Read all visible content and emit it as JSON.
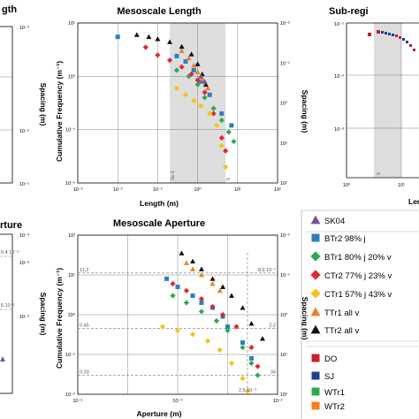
{
  "chart_data": [
    {
      "type": "scatter",
      "title": "Mesoscale Length",
      "xlabel": "Length (m)",
      "ylabel": "Cumulative Frequency (m⁻¹)",
      "y2label": "Spacing (m)",
      "xscale": "log",
      "yscale": "log",
      "xlim": [
        0.001,
        100
      ],
      "ylim": [
        0.01,
        10
      ],
      "xticks": [
        "10⁻³",
        "10⁻²",
        "10⁻¹",
        "10⁰",
        "10¹",
        "10²"
      ],
      "yticks": [
        "10¹",
        "10⁰",
        "10⁻¹",
        "10⁻²"
      ],
      "y2ticks": [
        "10⁻²",
        "10⁻¹",
        "10⁰",
        "10¹",
        "10²"
      ],
      "shaded_range": [
        0.2,
        5
      ],
      "annotations": [
        {
          "text": "2e-1",
          "x": 0.2
        },
        {
          "text": "5",
          "x": 5
        }
      ],
      "series": [
        {
          "name": "BTr2 98% j",
          "values": [
            [
              0.01,
              5.5
            ],
            [
              0.3,
              2.4
            ],
            [
              0.5,
              1.9
            ],
            [
              0.8,
              1.3
            ],
            [
              1.2,
              0.8
            ],
            [
              2,
              0.45
            ],
            [
              4,
              0.2
            ],
            [
              7,
              0.12
            ]
          ]
        },
        {
          "name": "BTr1 80% j 20% v",
          "values": [
            [
              0.3,
              1.3
            ],
            [
              0.6,
              1.0
            ],
            [
              1,
              0.7
            ],
            [
              1.5,
              0.4
            ],
            [
              2.5,
              0.25
            ],
            [
              4,
              0.15
            ],
            [
              6,
              0.09
            ],
            [
              8,
              0.06
            ]
          ]
        },
        {
          "name": "CTr2 77% j 23% v",
          "values": [
            [
              0.05,
              3.5
            ],
            [
              0.1,
              2.5
            ],
            [
              0.2,
              2.0
            ],
            [
              0.4,
              1.5
            ],
            [
              0.7,
              1.1
            ],
            [
              1,
              0.85
            ],
            [
              1.5,
              0.5
            ],
            [
              2.5,
              0.2
            ],
            [
              4,
              0.07
            ],
            [
              5,
              0.04
            ]
          ]
        },
        {
          "name": "CTr1 57% j 43% v",
          "values": [
            [
              0.3,
              0.6
            ],
            [
              0.5,
              0.45
            ],
            [
              0.8,
              0.35
            ],
            [
              1.2,
              0.28
            ],
            [
              2,
              0.2
            ],
            [
              3,
              0.12
            ],
            [
              4,
              0.05
            ],
            [
              5,
              0.02
            ]
          ]
        },
        {
          "name": "TTr1 all v",
          "values": [
            [
              0.4,
              3.0
            ],
            [
              0.6,
              2.2
            ],
            [
              0.8,
              1.6
            ],
            [
              1,
              1.2
            ],
            [
              1.3,
              0.9
            ],
            [
              1.8,
              0.6
            ]
          ]
        },
        {
          "name": "TTr2 all v",
          "values": [
            [
              0.03,
              6.0
            ],
            [
              0.06,
              5.5
            ],
            [
              0.1,
              5.0
            ],
            [
              0.2,
              4.4
            ],
            [
              0.4,
              3.6
            ],
            [
              0.7,
              2.6
            ],
            [
              1,
              1.7
            ],
            [
              1.3,
              1.1
            ],
            [
              1.6,
              0.7
            ]
          ]
        },
        {
          "name": "SK04",
          "values": [
            [
              1.2,
              1.0
            ],
            [
              1.5,
              0.8
            ]
          ]
        }
      ]
    },
    {
      "type": "scatter",
      "title": "Mesoscale Aperture",
      "xlabel": "Aperture (m)",
      "ylabel": "Cumulative Frequency (m⁻¹)",
      "y2label": "Spacing (m)",
      "xscale": "log",
      "yscale": "log",
      "xlim": [
        1e-06,
        0.01
      ],
      "ylim": [
        0.01,
        100
      ],
      "xticks": [
        "10⁻⁶",
        "10⁻⁴",
        "10⁻²"
      ],
      "yticks": [
        "10²",
        "10¹",
        "10⁰",
        "10⁻¹",
        "10⁻²"
      ],
      "y2ticks": [
        "10⁻²",
        "10⁻¹",
        "10⁰",
        "10¹",
        "10²"
      ],
      "annotations": [
        {
          "text": "11.2",
          "side": "left",
          "y": 11.2
        },
        {
          "text": "0.45",
          "side": "left",
          "y": 0.45
        },
        {
          "text": "0.03",
          "side": "left",
          "y": 0.03
        },
        {
          "text": "8.9 10⁻²",
          "side": "right",
          "y": 11.2
        },
        {
          "text": "2.2",
          "side": "right",
          "y": 0.45
        },
        {
          "text": "34",
          "side": "right",
          "y": 0.03
        },
        {
          "text": "2.5 10⁻³",
          "side": "bottom",
          "x": 0.0025
        }
      ],
      "series": [
        {
          "name": "BTr2 98% j",
          "values": [
            [
              6e-05,
              8
            ],
            [
              0.0001,
              5
            ],
            [
              0.0002,
              3
            ],
            [
              0.0003,
              2
            ],
            [
              0.0005,
              1.5
            ],
            [
              0.0008,
              0.9
            ],
            [
              0.001,
              0.5
            ],
            [
              0.002,
              0.2
            ],
            [
              0.003,
              0.08
            ]
          ]
        },
        {
          "name": "BTr1 80% j 20% v",
          "values": [
            [
              8e-05,
              3
            ],
            [
              0.00015,
              2
            ],
            [
              0.0003,
              1.2
            ],
            [
              0.0006,
              0.7
            ],
            [
              0.001,
              0.4
            ],
            [
              0.002,
              0.15
            ],
            [
              0.003,
              0.06
            ],
            [
              0.004,
              0.03
            ]
          ]
        },
        {
          "name": "CTr2 77% j 23% v",
          "values": [
            [
              8e-05,
              6
            ],
            [
              0.00015,
              4
            ],
            [
              0.0003,
              2.5
            ],
            [
              0.0005,
              1.6
            ],
            [
              0.0008,
              1.0
            ],
            [
              0.0015,
              0.5
            ],
            [
              0.003,
              0.15
            ],
            [
              0.004,
              0.05
            ]
          ]
        },
        {
          "name": "CTr1 57% j 43% v",
          "values": [
            [
              5e-05,
              0.5
            ],
            [
              0.0001,
              0.4
            ],
            [
              0.0002,
              0.32
            ],
            [
              0.0004,
              0.22
            ],
            [
              0.0007,
              0.13
            ],
            [
              0.0012,
              0.06
            ],
            [
              0.002,
              0.025
            ],
            [
              0.0025,
              0.012
            ]
          ]
        },
        {
          "name": "TTr1 all v",
          "values": [
            [
              0.00015,
              20
            ],
            [
              0.0002,
              14
            ],
            [
              0.0003,
              10
            ],
            [
              0.0005,
              6
            ],
            [
              0.0007,
              4
            ]
          ]
        },
        {
          "name": "TTr2 all v",
          "values": [
            [
              0.00012,
              35
            ],
            [
              0.0002,
              22
            ],
            [
              0.0003,
              14
            ],
            [
              0.0005,
              8
            ],
            [
              0.0008,
              5
            ],
            [
              0.0012,
              3
            ],
            [
              0.002,
              1.5
            ],
            [
              0.003,
              0.6
            ],
            [
              0.005,
              0.25
            ]
          ]
        }
      ]
    }
  ],
  "left_top": {
    "ylabel": "Spacing (m)",
    "yticks": [
      "10⁻⁴",
      "10⁻²",
      "10⁻¹"
    ],
    "title_fragment": "gth"
  },
  "left_bottom": {
    "ylabel": "Spacing (m)",
    "yticks": [
      "10⁻⁴",
      "10⁻³",
      "10⁻²"
    ],
    "title_fragment": "rture",
    "labels": [
      "6.4 10⁻³",
      "6.10⁻³"
    ]
  },
  "right_top": {
    "title": "Sub-regi",
    "ylabel": "",
    "xlabel": "Len",
    "yticks": [
      "10⁻¹",
      "10⁻²",
      "10⁻³"
    ],
    "xticks": [
      "10⁰",
      "10¹"
    ],
    "annotation": "5"
  },
  "legend": {
    "items": [
      {
        "label": "SK04",
        "marker": "triangle",
        "color": "#7b4fa0"
      },
      {
        "label": "BTr2 98% j",
        "marker": "square",
        "color": "#2f7fc0"
      },
      {
        "label": "BTr1 80% j 20% v",
        "marker": "diamond",
        "color": "#2fa84f"
      },
      {
        "label": "CTr2 77% j 23% v",
        "marker": "diamond",
        "color": "#e0282e"
      },
      {
        "label": "CTr1 57% j 43% v",
        "marker": "diamond",
        "color": "#f7c21b"
      },
      {
        "label": "TTr1 all v",
        "marker": "triangle",
        "color": "#f07f21"
      },
      {
        "label": "TTr2 all v",
        "marker": "triangle",
        "color": "#111111"
      },
      {
        "label": "DO",
        "marker": "square",
        "color": "#c8202a"
      },
      {
        "label": "SJ",
        "marker": "square",
        "color": "#1f3f8f"
      },
      {
        "label": "WTr1",
        "marker": "square",
        "color": "#2fa84f"
      },
      {
        "label": "WTr2",
        "marker": "square",
        "color": "#f07f21"
      }
    ]
  }
}
